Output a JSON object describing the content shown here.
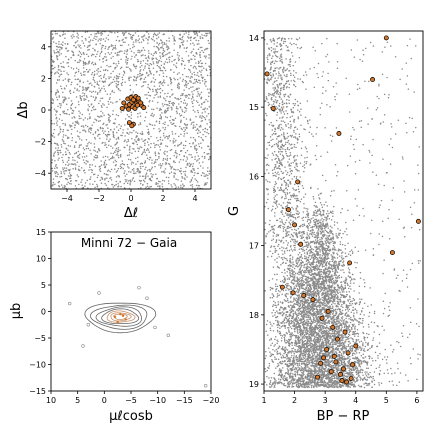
{
  "figure_title": "Minni 72 — Gaia",
  "colors": {
    "field": "#8a8a8a",
    "member_fill": "#d4772c",
    "member_edge": "#000000",
    "contour": "#666666",
    "contour_inner": "#c8926a"
  },
  "chart_data": [
    {
      "type": "scatter",
      "panel": "spatial",
      "xlabel": "Δℓ",
      "ylabel": "Δb",
      "xlim": [
        -5,
        5
      ],
      "ylim": [
        -5,
        5
      ],
      "xticks": [
        -4,
        -2,
        0,
        2,
        4
      ],
      "yticks": [
        -4,
        -2,
        0,
        2,
        4
      ],
      "xtick_labels": [
        "−4",
        "−2",
        "0",
        "2",
        "4"
      ],
      "ytick_labels": [
        "−4",
        "−2",
        "0",
        "2",
        "4"
      ],
      "field_stars": "dense uniform field of grey points across the panel",
      "members": {
        "x": [
          -0.55,
          -0.3,
          -0.1,
          0.05,
          0.2,
          0.35,
          0.5,
          0.65,
          0.8,
          -0.45,
          -0.2,
          0.0,
          0.15,
          0.3,
          0.45,
          0.6,
          -0.15,
          0.1,
          0.25,
          0.4,
          -0.1,
          0.15,
          0.05
        ],
        "y": [
          0.1,
          0.25,
          0.35,
          0.5,
          0.6,
          0.4,
          0.55,
          0.3,
          0.15,
          0.45,
          0.7,
          0.8,
          0.65,
          0.85,
          0.75,
          0.45,
          0.05,
          0.2,
          0.1,
          0.3,
          -0.8,
          -0.9,
          -1.0
        ]
      }
    },
    {
      "type": "scatter",
      "panel": "proper-motion",
      "title": "Minni 72  −  Gaia",
      "xlabel": "μℓcosb",
      "ylabel": "μb",
      "xlim": [
        10,
        -20
      ],
      "ylim": [
        -15,
        15
      ],
      "xticks": [
        10,
        5,
        0,
        -5,
        -10,
        -15,
        -20
      ],
      "yticks": [
        -15,
        -10,
        -5,
        0,
        5,
        10,
        15
      ],
      "xtick_labels": [
        "10",
        "5",
        "0",
        "−5",
        "−10",
        "−15",
        "−20"
      ],
      "ytick_labels": [
        "−15",
        "−10",
        "−5",
        "0",
        "5",
        "10",
        "15"
      ],
      "contour_center": [
        -3,
        -1
      ],
      "field_stars": {
        "x": [
          6.5,
          4.0,
          -8.0,
          -9.5,
          1.0,
          -12.0,
          -19.0,
          3.0,
          -6.5
        ],
        "y": [
          1.5,
          -6.5,
          2.5,
          -3.0,
          3.5,
          -4.5,
          -14.0,
          -2.5,
          4.5
        ]
      },
      "members": {
        "x": [
          -2.0,
          -3.0,
          -4.0,
          -2.5,
          -3.5
        ],
        "y": [
          -1.0,
          -0.5,
          -1.5,
          -2.0,
          -0.8
        ]
      }
    },
    {
      "type": "scatter",
      "panel": "cmd",
      "xlabel": "BP − RP",
      "ylabel": "G",
      "xlim": [
        1,
        6.2
      ],
      "ylim": [
        19.1,
        13.9
      ],
      "xticks": [
        1,
        2,
        3,
        4,
        5,
        6
      ],
      "yticks": [
        14,
        15,
        16,
        17,
        18,
        19
      ],
      "xtick_labels": [
        "1",
        "2",
        "3",
        "4",
        "5",
        "6"
      ],
      "ytick_labels": [
        "14",
        "15",
        "16",
        "17",
        "18",
        "19"
      ],
      "field_stars": "grey points in an upper-left giant branch and a dense lower wedge widening toward G≈19",
      "members": {
        "x": [
          5.0,
          1.1,
          4.55,
          1.3,
          3.45,
          2.1,
          6.05,
          1.8,
          2.0,
          2.2,
          1.6,
          3.8,
          5.2,
          2.3,
          1.95,
          2.6,
          3.1,
          2.9,
          3.25,
          3.65,
          3.4,
          3.05,
          2.95,
          3.75,
          3.35,
          3.9,
          3.6,
          3.2,
          3.5,
          2.75,
          3.85,
          3.55,
          3.3,
          4.0,
          2.85,
          3.7
        ],
        "y": [
          14.0,
          14.52,
          14.6,
          15.02,
          15.38,
          16.08,
          16.65,
          16.48,
          16.7,
          16.98,
          17.6,
          17.25,
          17.1,
          17.72,
          17.68,
          17.78,
          17.95,
          18.05,
          18.18,
          18.25,
          18.35,
          18.5,
          18.62,
          18.55,
          18.68,
          18.72,
          18.78,
          18.82,
          18.86,
          18.9,
          18.92,
          18.95,
          18.6,
          18.45,
          18.7,
          18.97
        ]
      }
    }
  ]
}
